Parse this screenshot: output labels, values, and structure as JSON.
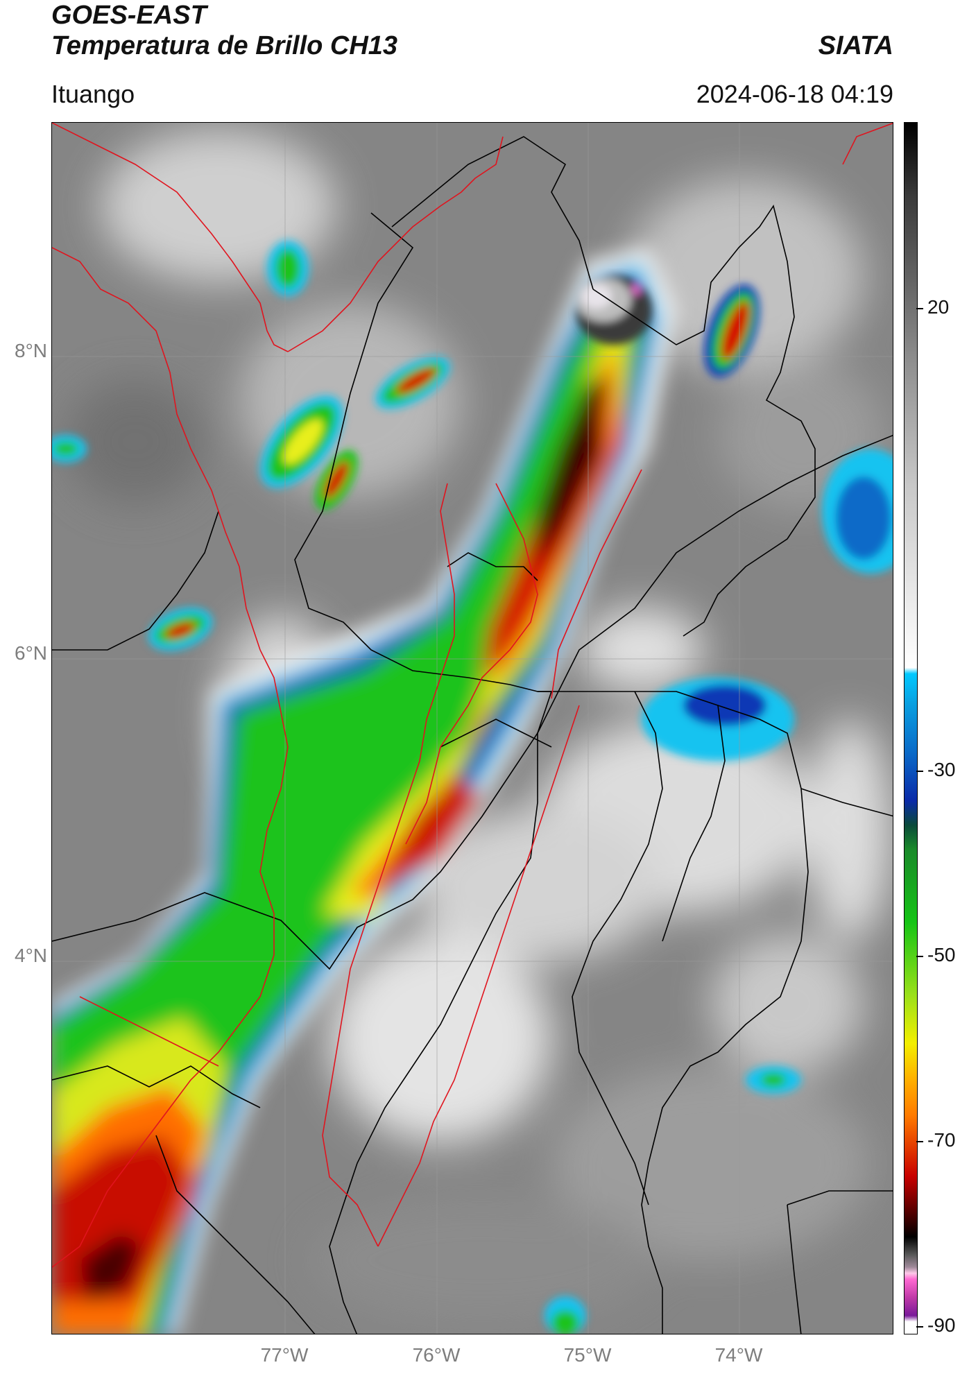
{
  "header": {
    "title": "GOES-EAST",
    "subtitle": "Temperatura de Brillo CH13",
    "organization": "SIATA",
    "region": "Ituango",
    "datetime": "2024-06-18 04:19"
  },
  "map": {
    "type": "satellite-brightness-temperature",
    "lat_labels": [
      "8°N",
      "6°N",
      "4°N"
    ],
    "lon_labels": [
      "77°W",
      "76°W",
      "75°W",
      "74°W"
    ],
    "boundary_colors": {
      "national": "#e0141e",
      "departments": "#000000"
    },
    "graticule": true
  },
  "colorbar": {
    "ticks": [
      "20",
      "-30",
      "-50",
      "-70",
      "-90"
    ],
    "range": [
      -90,
      35
    ],
    "colors": {
      "warm": "#909090",
      "white": "#ffffff",
      "cyan": "#00c8ff",
      "blue": "#0a2aa8",
      "green": "#16c416",
      "yellow": "#f3ef00",
      "orange": "#ff7a00",
      "red": "#c80000",
      "darkred": "#2a0000",
      "black": "#000000",
      "pink": "#ff69d2",
      "purple": "#7a1a9a"
    }
  }
}
